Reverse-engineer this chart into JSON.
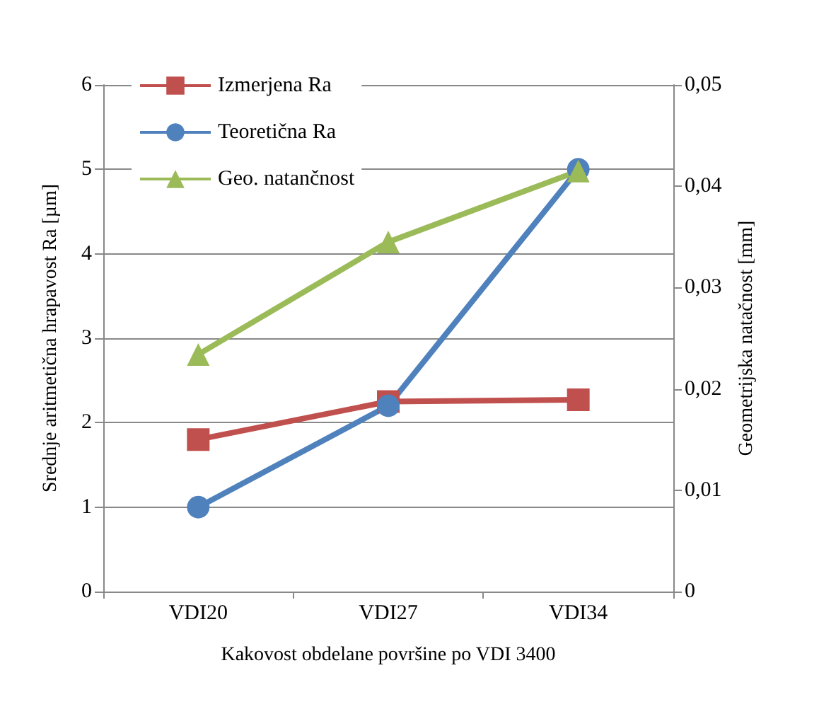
{
  "chart_data": {
    "type": "line",
    "xlabel": "Kakovost obdelane površine po VDI 3400",
    "ylabel": "Srednje aritmetična hrapavost Ra [µm]",
    "y2label": "Geometrijska natačnost [mm]",
    "categories": [
      "VDI20",
      "VDI27",
      "VDI34"
    ],
    "series": [
      {
        "name": "Izmerjena Ra",
        "color": "#c0504d",
        "marker": "square",
        "values": [
          1.8,
          2.25,
          2.27
        ]
      },
      {
        "name": "Teoretična Ra",
        "color": "#4f81bd",
        "marker": "circle",
        "values": [
          1,
          2.2,
          5
        ]
      },
      {
        "name": "Geo. natančnost",
        "color": "#9bbb59",
        "marker": "triangle",
        "axis": "y2",
        "values": [
          0.0234,
          0.0345,
          0.0415
        ]
      }
    ],
    "ylim": [
      0,
      6
    ],
    "yticks": [
      0,
      1,
      2,
      3,
      4,
      5,
      6
    ],
    "y2lim": [
      0,
      0.05
    ],
    "y2ticks": [
      {
        "value": 0,
        "label": "0"
      },
      {
        "value": 0.01,
        "label": "0,01"
      },
      {
        "value": 0.02,
        "label": "0,02"
      },
      {
        "value": 0.03,
        "label": "0,03"
      },
      {
        "value": 0.04,
        "label": "0,04"
      },
      {
        "value": 0.05,
        "label": "0,05"
      }
    ],
    "grid": "y",
    "legend": "top left"
  }
}
